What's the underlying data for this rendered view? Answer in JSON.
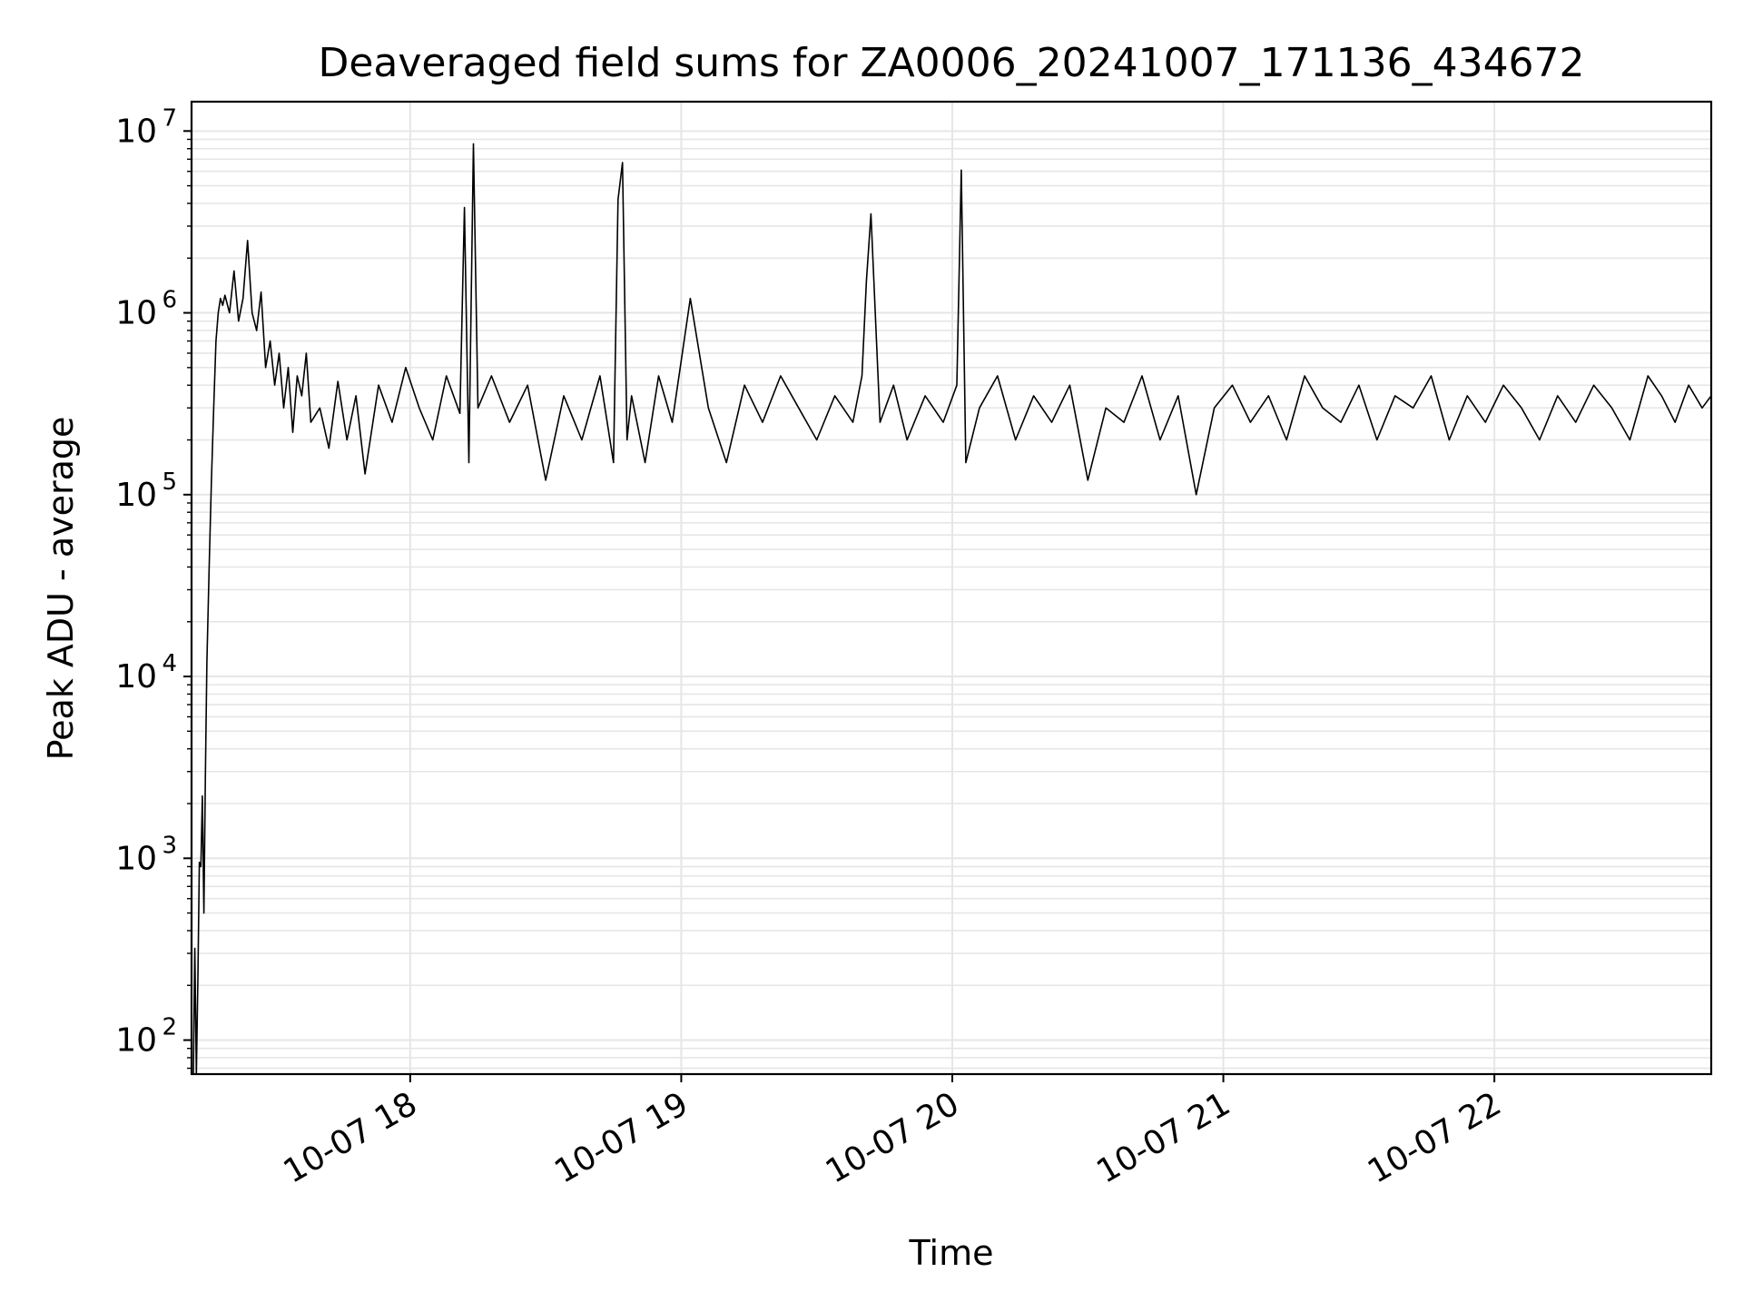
{
  "chart_data": {
    "type": "line",
    "title": "Deaveraged field sums for ZA0006_20241007_171136_434672",
    "xlabel": "Time",
    "ylabel": "Peak ADU - average",
    "y_scale": "log",
    "ylim": [
      65,
      14500000
    ],
    "xlim": [
      "2024-10-07 17:11:36",
      "2024-10-07 22:48:00"
    ],
    "x_ticks": [
      {
        "value": "2024-10-07 18:00",
        "label": "10-07 18"
      },
      {
        "value": "2024-10-07 19:00",
        "label": "10-07 19"
      },
      {
        "value": "2024-10-07 20:00",
        "label": "10-07 20"
      },
      {
        "value": "2024-10-07 21:00",
        "label": "10-07 21"
      },
      {
        "value": "2024-10-07 22:00",
        "label": "10-07 22"
      }
    ],
    "y_ticks": [
      {
        "value": 100,
        "base": "10",
        "exp": "2"
      },
      {
        "value": 1000,
        "base": "10",
        "exp": "3"
      },
      {
        "value": 10000,
        "base": "10",
        "exp": "4"
      },
      {
        "value": 100000,
        "base": "10",
        "exp": "5"
      },
      {
        "value": 1000000,
        "base": "10",
        "exp": "6"
      },
      {
        "value": 10000000,
        "base": "10",
        "exp": "7"
      }
    ],
    "grid": true,
    "line_color": "#000000",
    "grid_color": "#e6e6e6",
    "series": [
      {
        "x": [
          "2024-10-07 17:12:00",
          "2024-10-07 17:12:20",
          "2024-10-07 17:12:40",
          "2024-10-07 17:13:00",
          "2024-10-07 17:13:20",
          "2024-10-07 17:13:40",
          "2024-10-07 17:14:00",
          "2024-10-07 17:14:20",
          "2024-10-07 17:14:40",
          "2024-10-07 17:15:00",
          "2024-10-07 17:15:30",
          "2024-10-07 17:16:00",
          "2024-10-07 17:16:30",
          "2024-10-07 17:17:00",
          "2024-10-07 17:17:30",
          "2024-10-07 17:18:00",
          "2024-10-07 17:18:30",
          "2024-10-07 17:19:00",
          "2024-10-07 17:20:00",
          "2024-10-07 17:21:00",
          "2024-10-07 17:22:00",
          "2024-10-07 17:23:00",
          "2024-10-07 17:24:00",
          "2024-10-07 17:25:00",
          "2024-10-07 17:26:00",
          "2024-10-07 17:27:00",
          "2024-10-07 17:28:00",
          "2024-10-07 17:29:00",
          "2024-10-07 17:30:00",
          "2024-10-07 17:31:00",
          "2024-10-07 17:32:00",
          "2024-10-07 17:33:00",
          "2024-10-07 17:34:00",
          "2024-10-07 17:35:00",
          "2024-10-07 17:36:00",
          "2024-10-07 17:37:00",
          "2024-10-07 17:38:00",
          "2024-10-07 17:40:00",
          "2024-10-07 17:42:00",
          "2024-10-07 17:44:00",
          "2024-10-07 17:46:00",
          "2024-10-07 17:48:00",
          "2024-10-07 17:50:00",
          "2024-10-07 17:53:00",
          "2024-10-07 17:56:00",
          "2024-10-07 17:59:00",
          "2024-10-07 18:02:00",
          "2024-10-07 18:05:00",
          "2024-10-07 18:08:00",
          "2024-10-07 18:11:00",
          "2024-10-07 18:12:00",
          "2024-10-07 18:13:00",
          "2024-10-07 18:14:00",
          "2024-10-07 18:15:00",
          "2024-10-07 18:18:00",
          "2024-10-07 18:22:00",
          "2024-10-07 18:26:00",
          "2024-10-07 18:30:00",
          "2024-10-07 18:34:00",
          "2024-10-07 18:38:00",
          "2024-10-07 18:42:00",
          "2024-10-07 18:45:00",
          "2024-10-07 18:46:00",
          "2024-10-07 18:47:00",
          "2024-10-07 18:48:00",
          "2024-10-07 18:49:00",
          "2024-10-07 18:52:00",
          "2024-10-07 18:55:00",
          "2024-10-07 18:58:00",
          "2024-10-07 19:02:00",
          "2024-10-07 19:06:00",
          "2024-10-07 19:10:00",
          "2024-10-07 19:14:00",
          "2024-10-07 19:18:00",
          "2024-10-07 19:22:00",
          "2024-10-07 19:26:00",
          "2024-10-07 19:30:00",
          "2024-10-07 19:34:00",
          "2024-10-07 19:38:00",
          "2024-10-07 19:40:00",
          "2024-10-07 19:41:00",
          "2024-10-07 19:42:00",
          "2024-10-07 19:44:00",
          "2024-10-07 19:47:00",
          "2024-10-07 19:50:00",
          "2024-10-07 19:54:00",
          "2024-10-07 19:58:00",
          "2024-10-07 20:01:00",
          "2024-10-07 20:02:00",
          "2024-10-07 20:03:00",
          "2024-10-07 20:06:00",
          "2024-10-07 20:10:00",
          "2024-10-07 20:14:00",
          "2024-10-07 20:18:00",
          "2024-10-07 20:22:00",
          "2024-10-07 20:26:00",
          "2024-10-07 20:30:00",
          "2024-10-07 20:34:00",
          "2024-10-07 20:38:00",
          "2024-10-07 20:42:00",
          "2024-10-07 20:46:00",
          "2024-10-07 20:50:00",
          "2024-10-07 20:54:00",
          "2024-10-07 20:58:00",
          "2024-10-07 21:02:00",
          "2024-10-07 21:06:00",
          "2024-10-07 21:10:00",
          "2024-10-07 21:14:00",
          "2024-10-07 21:18:00",
          "2024-10-07 21:22:00",
          "2024-10-07 21:26:00",
          "2024-10-07 21:30:00",
          "2024-10-07 21:34:00",
          "2024-10-07 21:38:00",
          "2024-10-07 21:42:00",
          "2024-10-07 21:46:00",
          "2024-10-07 21:50:00",
          "2024-10-07 21:54:00",
          "2024-10-07 21:58:00",
          "2024-10-07 22:02:00",
          "2024-10-07 22:06:00",
          "2024-10-07 22:10:00",
          "2024-10-07 22:14:00",
          "2024-10-07 22:18:00",
          "2024-10-07 22:22:00",
          "2024-10-07 22:26:00",
          "2024-10-07 22:30:00",
          "2024-10-07 22:34:00",
          "2024-10-07 22:37:00",
          "2024-10-07 22:40:00",
          "2024-10-07 22:43:00",
          "2024-10-07 22:46:00",
          "2024-10-07 22:48:00"
        ],
        "values": [
          65,
          320,
          65,
          220,
          950,
          900,
          2200,
          500,
          3000,
          12000,
          40000,
          120000,
          300000,
          700000,
          1000000,
          1200000,
          1100000,
          1250000,
          1000000,
          1700000,
          900000,
          1200000,
          2500000,
          1000000,
          800000,
          1300000,
          500000,
          700000,
          400000,
          600000,
          300000,
          500000,
          220000,
          450000,
          350000,
          600000,
          250000,
          300000,
          180000,
          420000,
          200000,
          350000,
          130000,
          400000,
          250000,
          500000,
          300000,
          200000,
          450000,
          280000,
          3800000,
          150000,
          8500000,
          300000,
          450000,
          250000,
          400000,
          120000,
          350000,
          200000,
          450000,
          150000,
          4200000,
          6700000,
          200000,
          350000,
          150000,
          450000,
          250000,
          1200000,
          300000,
          150000,
          400000,
          250000,
          450000,
          300000,
          200000,
          350000,
          250000,
          450000,
          1500000,
          3500000,
          250000,
          400000,
          200000,
          350000,
          250000,
          400000,
          6100000,
          150000,
          300000,
          450000,
          200000,
          350000,
          250000,
          400000,
          120000,
          300000,
          250000,
          450000,
          200000,
          350000,
          100000,
          300000,
          400000,
          250000,
          350000,
          200000,
          450000,
          300000,
          250000,
          400000,
          200000,
          350000,
          300000,
          450000,
          200000,
          350000,
          250000,
          400000,
          300000,
          200000,
          350000,
          250000,
          400000,
          300000,
          200000,
          450000,
          350000,
          250000,
          400000,
          300000,
          350000
        ]
      }
    ]
  }
}
